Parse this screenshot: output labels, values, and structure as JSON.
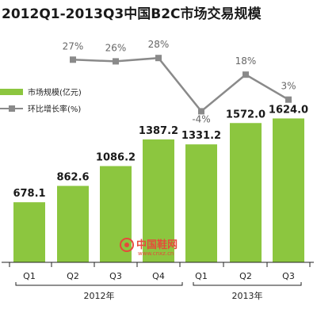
{
  "chart_data": {
    "type": "bar",
    "title": "2012Q1-2013Q3中国B2C市场交易规模",
    "categories": [
      "Q1",
      "Q2",
      "Q3",
      "Q4",
      "Q1",
      "Q2",
      "Q3"
    ],
    "groups": [
      {
        "label": "2012年",
        "categories": [
          "Q1",
          "Q2",
          "Q3",
          "Q4"
        ]
      },
      {
        "label": "2013年",
        "categories": [
          "Q1",
          "Q2",
          "Q3"
        ]
      }
    ],
    "series": [
      {
        "name": "市场规模(亿元)",
        "type": "bar",
        "color": "#8cc63f",
        "values": [
          678.1,
          862.6,
          1086.2,
          1387.2,
          1331.2,
          1572.0,
          1624.0
        ],
        "labels": [
          "678.1",
          "862.6",
          "1086.2",
          "1387.2",
          "1331.2",
          "1572.0",
          "1624.0"
        ]
      },
      {
        "name": "环比增长率(%)",
        "type": "line",
        "color": "#8a8a8a",
        "values": [
          null,
          27,
          26,
          28,
          -4,
          18,
          3
        ],
        "labels": [
          "",
          "27%",
          "26%",
          "28%",
          "-4%",
          "18%",
          "3%"
        ]
      }
    ],
    "legend_position": "top-left",
    "grid": false
  },
  "watermark": {
    "text": "中国鞋网",
    "url": "www.cnxz.cn",
    "color": "#e64a3b"
  }
}
